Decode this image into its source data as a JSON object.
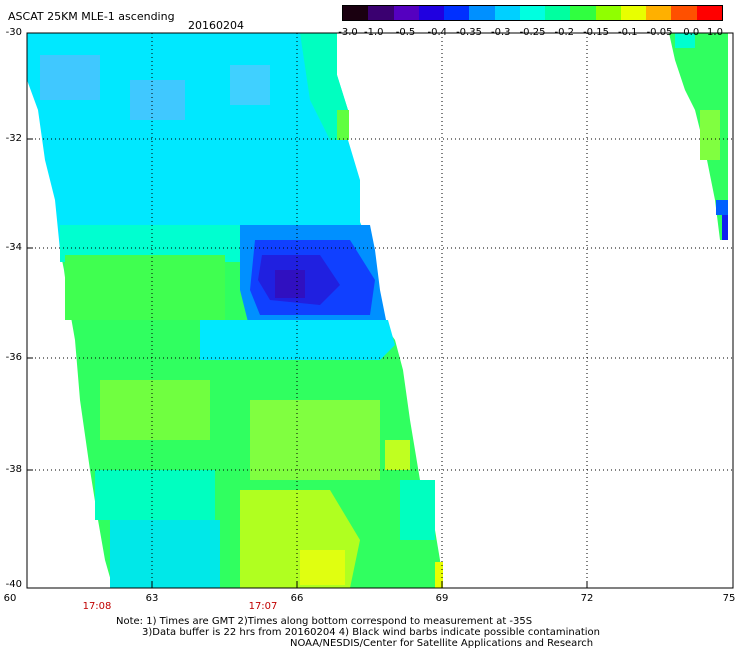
{
  "header": {
    "title": "ASCAT 25KM MLE-1 ascending",
    "date": "20160204"
  },
  "colorbar": {
    "labels": [
      "-3.0",
      "-1.0",
      "-0.5",
      "-0.4",
      "-0.35",
      "-0.3",
      "-0.25",
      "-0.2",
      "-0.15",
      "-0.1",
      "-0.05",
      "0.0",
      "1.0"
    ],
    "colors": [
      "#1a0010",
      "#3a0070",
      "#5500c0",
      "#2000e0",
      "#0030ff",
      "#0090ff",
      "#00d0ff",
      "#00ffe0",
      "#00ffa0",
      "#30ff40",
      "#90ff00",
      "#e8ff00",
      "#ffb000",
      "#ff5000",
      "#ff0000"
    ]
  },
  "axes": {
    "lat_labels": [
      "-30",
      "-32",
      "-34",
      "-36",
      "-38",
      "-40"
    ],
    "lon_labels": [
      "60",
      "63",
      "66",
      "69",
      "72",
      "75"
    ]
  },
  "times": [
    "17:08",
    "17:07"
  ],
  "notes": {
    "line1": "Note: 1) Times are GMT 2)Times along bottom correspond to measurement at -35S",
    "line2": "3)Data buffer is 22 hrs from 20160204 4) Black wind barbs indicate possible contamination",
    "line3": "NOAA/NESDIS/Center for Satellite Applications and Research"
  },
  "palette": {
    "cyan": "#00e8ff",
    "light_cyan": "#40d8ff",
    "aqua": "#00ffd0",
    "green": "#30ff60",
    "light_green": "#70ff40",
    "yellow_green": "#b0ff20",
    "yellow": "#e8ff00",
    "blue": "#0070ff",
    "dark_blue": "#1020f0",
    "purple": "#3010d0"
  }
}
